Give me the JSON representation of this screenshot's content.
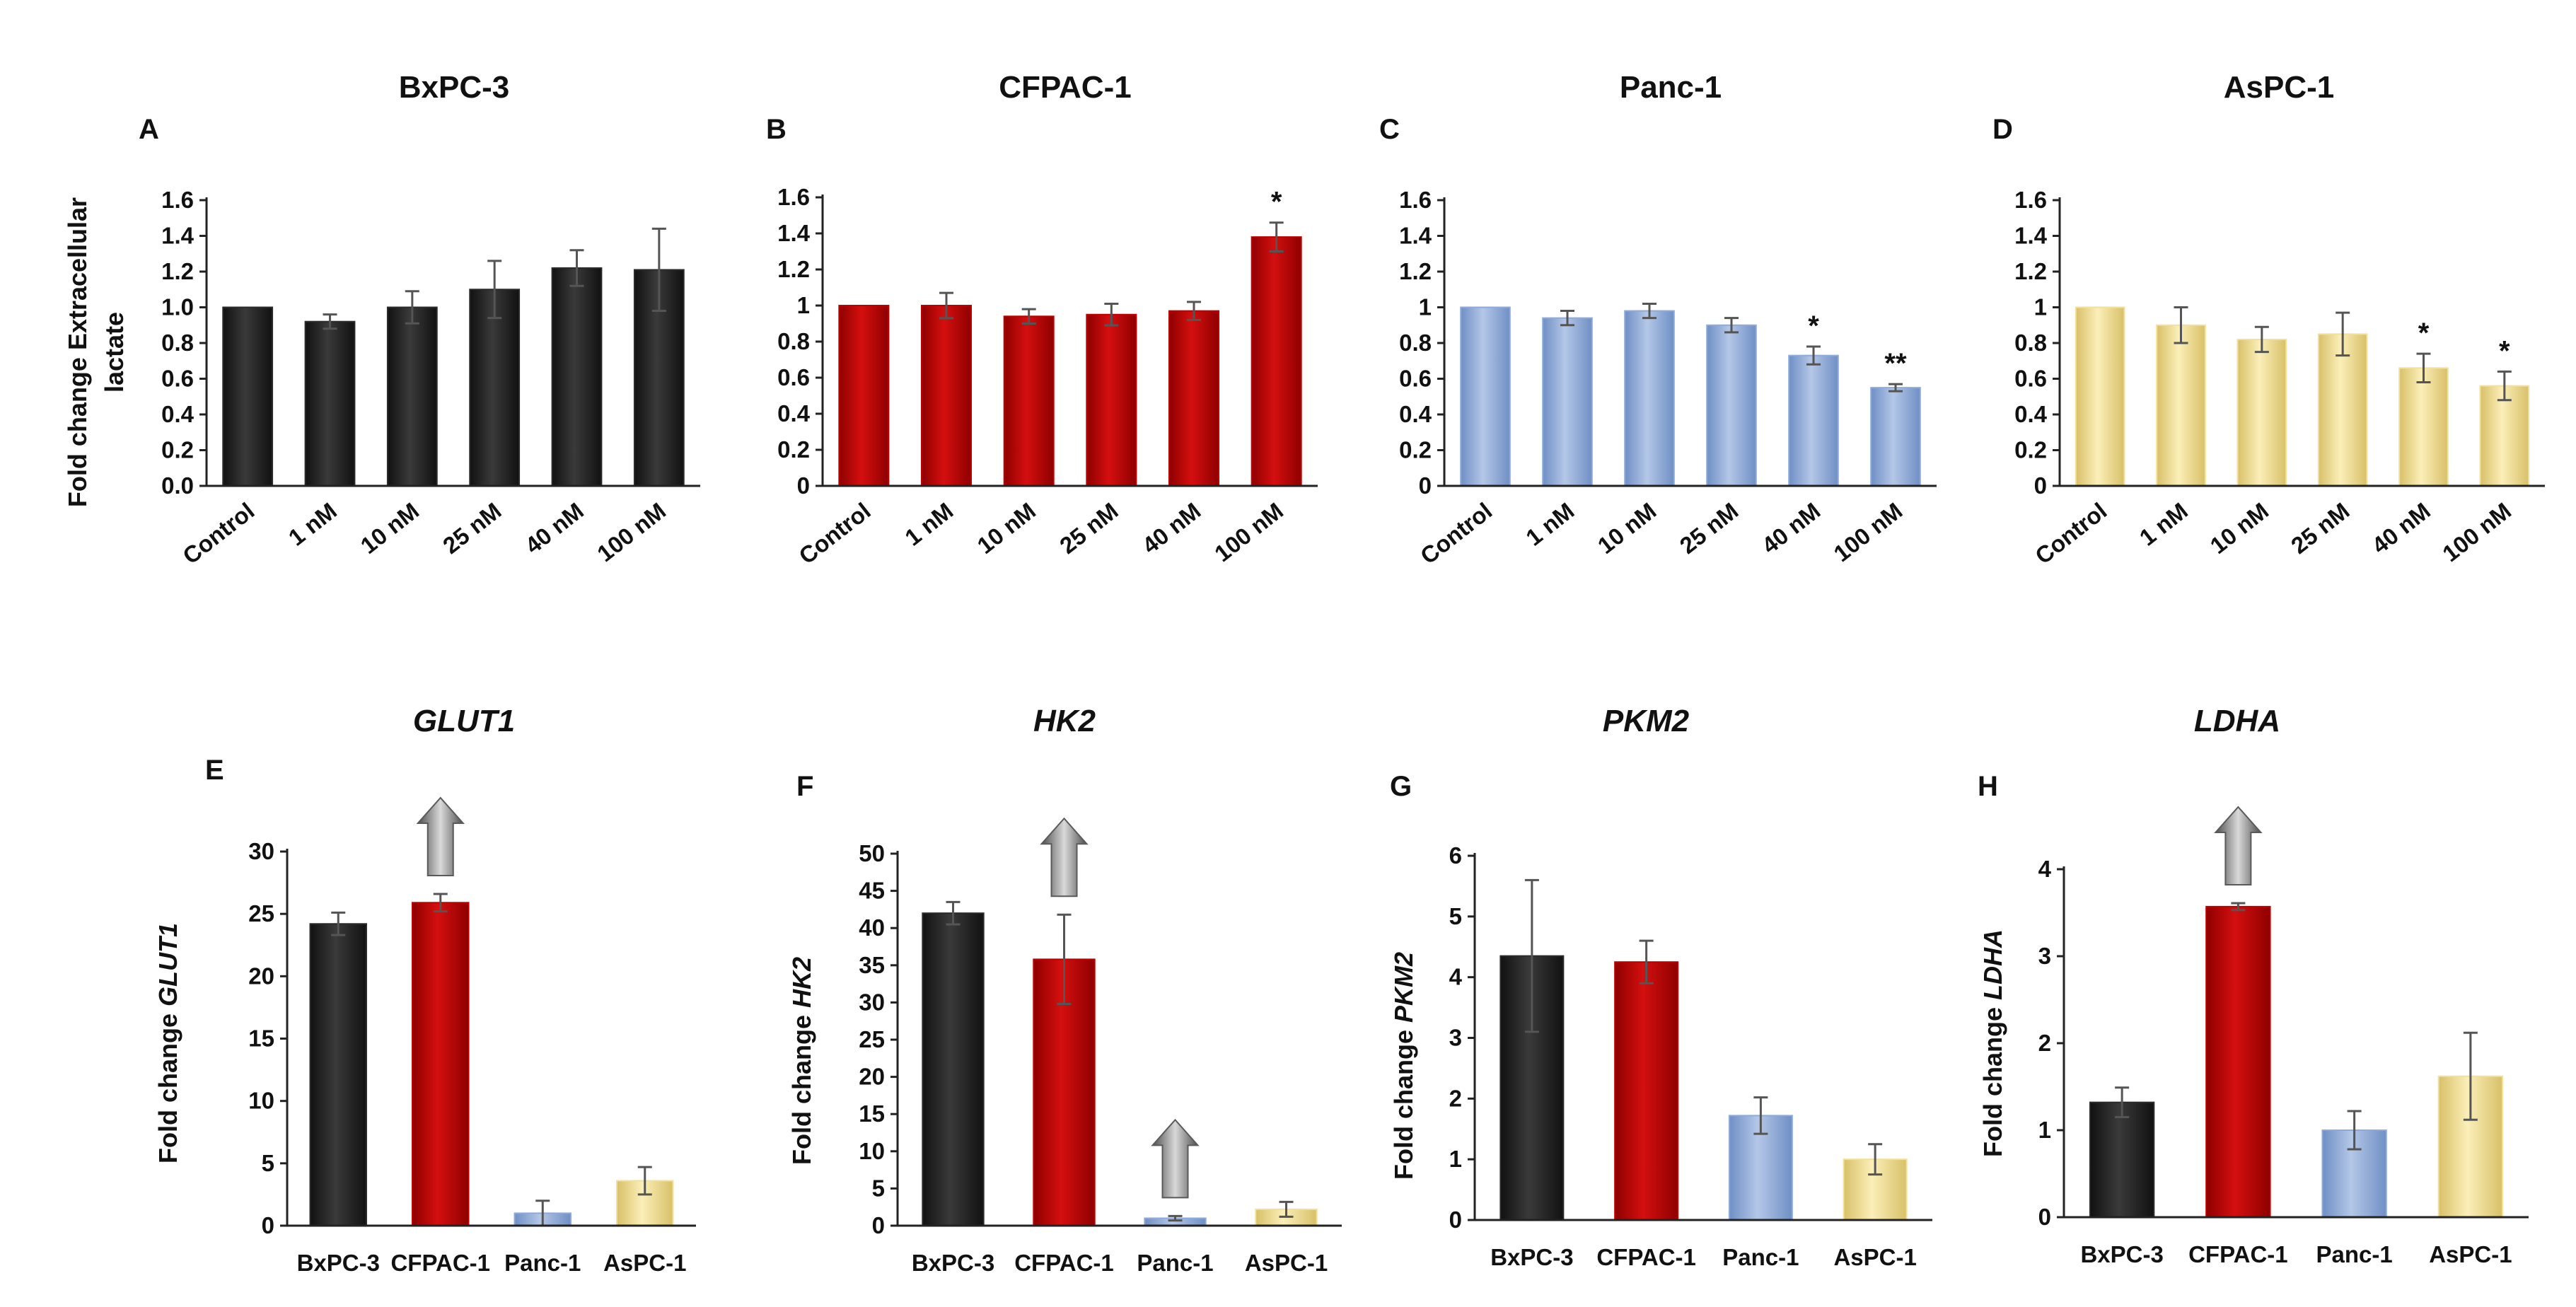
{
  "colors": {
    "black": "#2b2b2b",
    "red": "#c00000",
    "blue": "#8eaadb",
    "yellow": "#f2e09b",
    "arrow": "#7f7f7f"
  },
  "chart_data": [
    {
      "id": "A",
      "type": "bar",
      "letter": "A",
      "title": "BxPC-3",
      "ylabel": "Fold change  Extracellular lactate",
      "ylabel_lines": [
        "Fold change  Extracellular",
        "lactate"
      ],
      "categories": [
        "Control",
        "1 nM",
        "10 nM",
        "25 nM",
        "40 nM",
        "100 nM"
      ],
      "values": [
        1.0,
        0.92,
        1.0,
        1.1,
        1.22,
        1.21
      ],
      "errors": [
        0.0,
        0.04,
        0.09,
        0.16,
        0.1,
        0.23
      ],
      "significance": [
        "",
        "",
        "",
        "",
        "",
        ""
      ],
      "yticks": [
        "0.0",
        "0.2",
        "0.4",
        "0.6",
        "0.8",
        "1.0",
        "1.2",
        "1.4",
        "1.6"
      ],
      "ylim": [
        0,
        1.6
      ],
      "color": "black"
    },
    {
      "id": "B",
      "type": "bar",
      "letter": "B",
      "title": "CFPAC-1",
      "categories": [
        "Control",
        "1 nM",
        "10 nM",
        "25 nM",
        "40 nM",
        "100 nM"
      ],
      "values": [
        1.0,
        1.0,
        0.94,
        0.95,
        0.97,
        1.38
      ],
      "errors": [
        0.0,
        0.07,
        0.04,
        0.06,
        0.05,
        0.08
      ],
      "significance": [
        "",
        "",
        "",
        "",
        "",
        "*"
      ],
      "yticks": [
        "0",
        "0.2",
        "0.4",
        "0.6",
        "0.8",
        "1",
        "1.2",
        "1.4",
        "1.6"
      ],
      "ylim": [
        0,
        1.6
      ],
      "color": "red"
    },
    {
      "id": "C",
      "type": "bar",
      "letter": "C",
      "title": "Panc-1",
      "categories": [
        "Control",
        "1 nM",
        "10 nM",
        "25 nM",
        "40 nM",
        "100 nM"
      ],
      "values": [
        1.0,
        0.94,
        0.98,
        0.9,
        0.73,
        0.55
      ],
      "errors": [
        0.0,
        0.04,
        0.04,
        0.04,
        0.05,
        0.02
      ],
      "significance": [
        "",
        "",
        "",
        "",
        "*",
        "**"
      ],
      "yticks": [
        "0",
        "0.2",
        "0.4",
        "0.6",
        "0.8",
        "1",
        "1.2",
        "1.4",
        "1.6"
      ],
      "ylim": [
        0,
        1.6
      ],
      "color": "blue"
    },
    {
      "id": "D",
      "type": "bar",
      "letter": "D",
      "title": "AsPC-1",
      "categories": [
        "Control",
        "1 nM",
        "10 nM",
        "25 nM",
        "40 nM",
        "100 nM"
      ],
      "values": [
        1.0,
        0.9,
        0.82,
        0.85,
        0.66,
        0.56
      ],
      "errors": [
        0.0,
        0.1,
        0.07,
        0.12,
        0.08,
        0.08
      ],
      "significance": [
        "",
        "",
        "",
        "",
        "*",
        "*"
      ],
      "yticks": [
        "0",
        "0.2",
        "0.4",
        "0.6",
        "0.8",
        "1",
        "1.2",
        "1.4",
        "1.6"
      ],
      "ylim": [
        0,
        1.6
      ],
      "color": "yellow"
    },
    {
      "id": "E",
      "type": "bar",
      "letter": "E",
      "title": "GLUT1",
      "ylabel_prefix": "Fold change ",
      "ylabel_gene": "GLUT1",
      "categories": [
        "BxPC-3",
        "CFPAC-1",
        "Panc-1",
        "AsPC-1"
      ],
      "values": [
        24.2,
        25.9,
        1.0,
        3.6
      ],
      "errors": [
        0.9,
        0.7,
        1.0,
        1.1
      ],
      "colors": [
        "black",
        "red",
        "blue",
        "yellow"
      ],
      "arrows": [
        false,
        true,
        false,
        false
      ],
      "yticks": [
        "0",
        "5",
        "10",
        "15",
        "20",
        "25",
        "30"
      ],
      "ylim": [
        0,
        30
      ]
    },
    {
      "id": "F",
      "type": "bar",
      "letter": "F",
      "title": "HK2",
      "ylabel_prefix": "Fold change ",
      "ylabel_gene": "HK2",
      "categories": [
        "BxPC-3",
        "CFPAC-1",
        "Panc-1",
        "AsPC-1"
      ],
      "values": [
        42.0,
        35.8,
        1.0,
        2.2
      ],
      "errors": [
        1.5,
        6.0,
        0.3,
        1.0
      ],
      "colors": [
        "black",
        "red",
        "blue",
        "yellow"
      ],
      "arrows": [
        false,
        true,
        true,
        false
      ],
      "yticks": [
        "0",
        "5",
        "10",
        "15",
        "20",
        "25",
        "30",
        "35",
        "40",
        "45",
        "50"
      ],
      "ylim": [
        0,
        50
      ]
    },
    {
      "id": "G",
      "type": "bar",
      "letter": "G",
      "title": "PKM2",
      "ylabel_prefix": "Fold change ",
      "ylabel_gene": "PKM2",
      "categories": [
        "BxPC-3",
        "CFPAC-1",
        "Panc-1",
        "AsPC-1"
      ],
      "values": [
        4.35,
        4.25,
        1.72,
        1.0
      ],
      "errors": [
        1.25,
        0.35,
        0.3,
        0.25
      ],
      "colors": [
        "black",
        "red",
        "blue",
        "yellow"
      ],
      "arrows": [
        false,
        false,
        false,
        false
      ],
      "yticks": [
        "0",
        "1",
        "2",
        "3",
        "4",
        "5",
        "6"
      ],
      "ylim": [
        0,
        6
      ]
    },
    {
      "id": "H",
      "type": "bar",
      "letter": "H",
      "title": "LDHA",
      "ylabel_prefix": "Fold change ",
      "ylabel_gene": "LDHA",
      "categories": [
        "BxPC-3",
        "CFPAC-1",
        "Panc-1",
        "AsPC-1"
      ],
      "values": [
        1.32,
        3.57,
        1.0,
        1.62
      ],
      "errors": [
        0.17,
        0.04,
        0.22,
        0.5
      ],
      "colors": [
        "black",
        "red",
        "blue",
        "yellow"
      ],
      "arrows": [
        false,
        true,
        false,
        false
      ],
      "yticks": [
        "0",
        "1",
        "2",
        "3",
        "4"
      ],
      "ylim": [
        0,
        4
      ]
    }
  ]
}
